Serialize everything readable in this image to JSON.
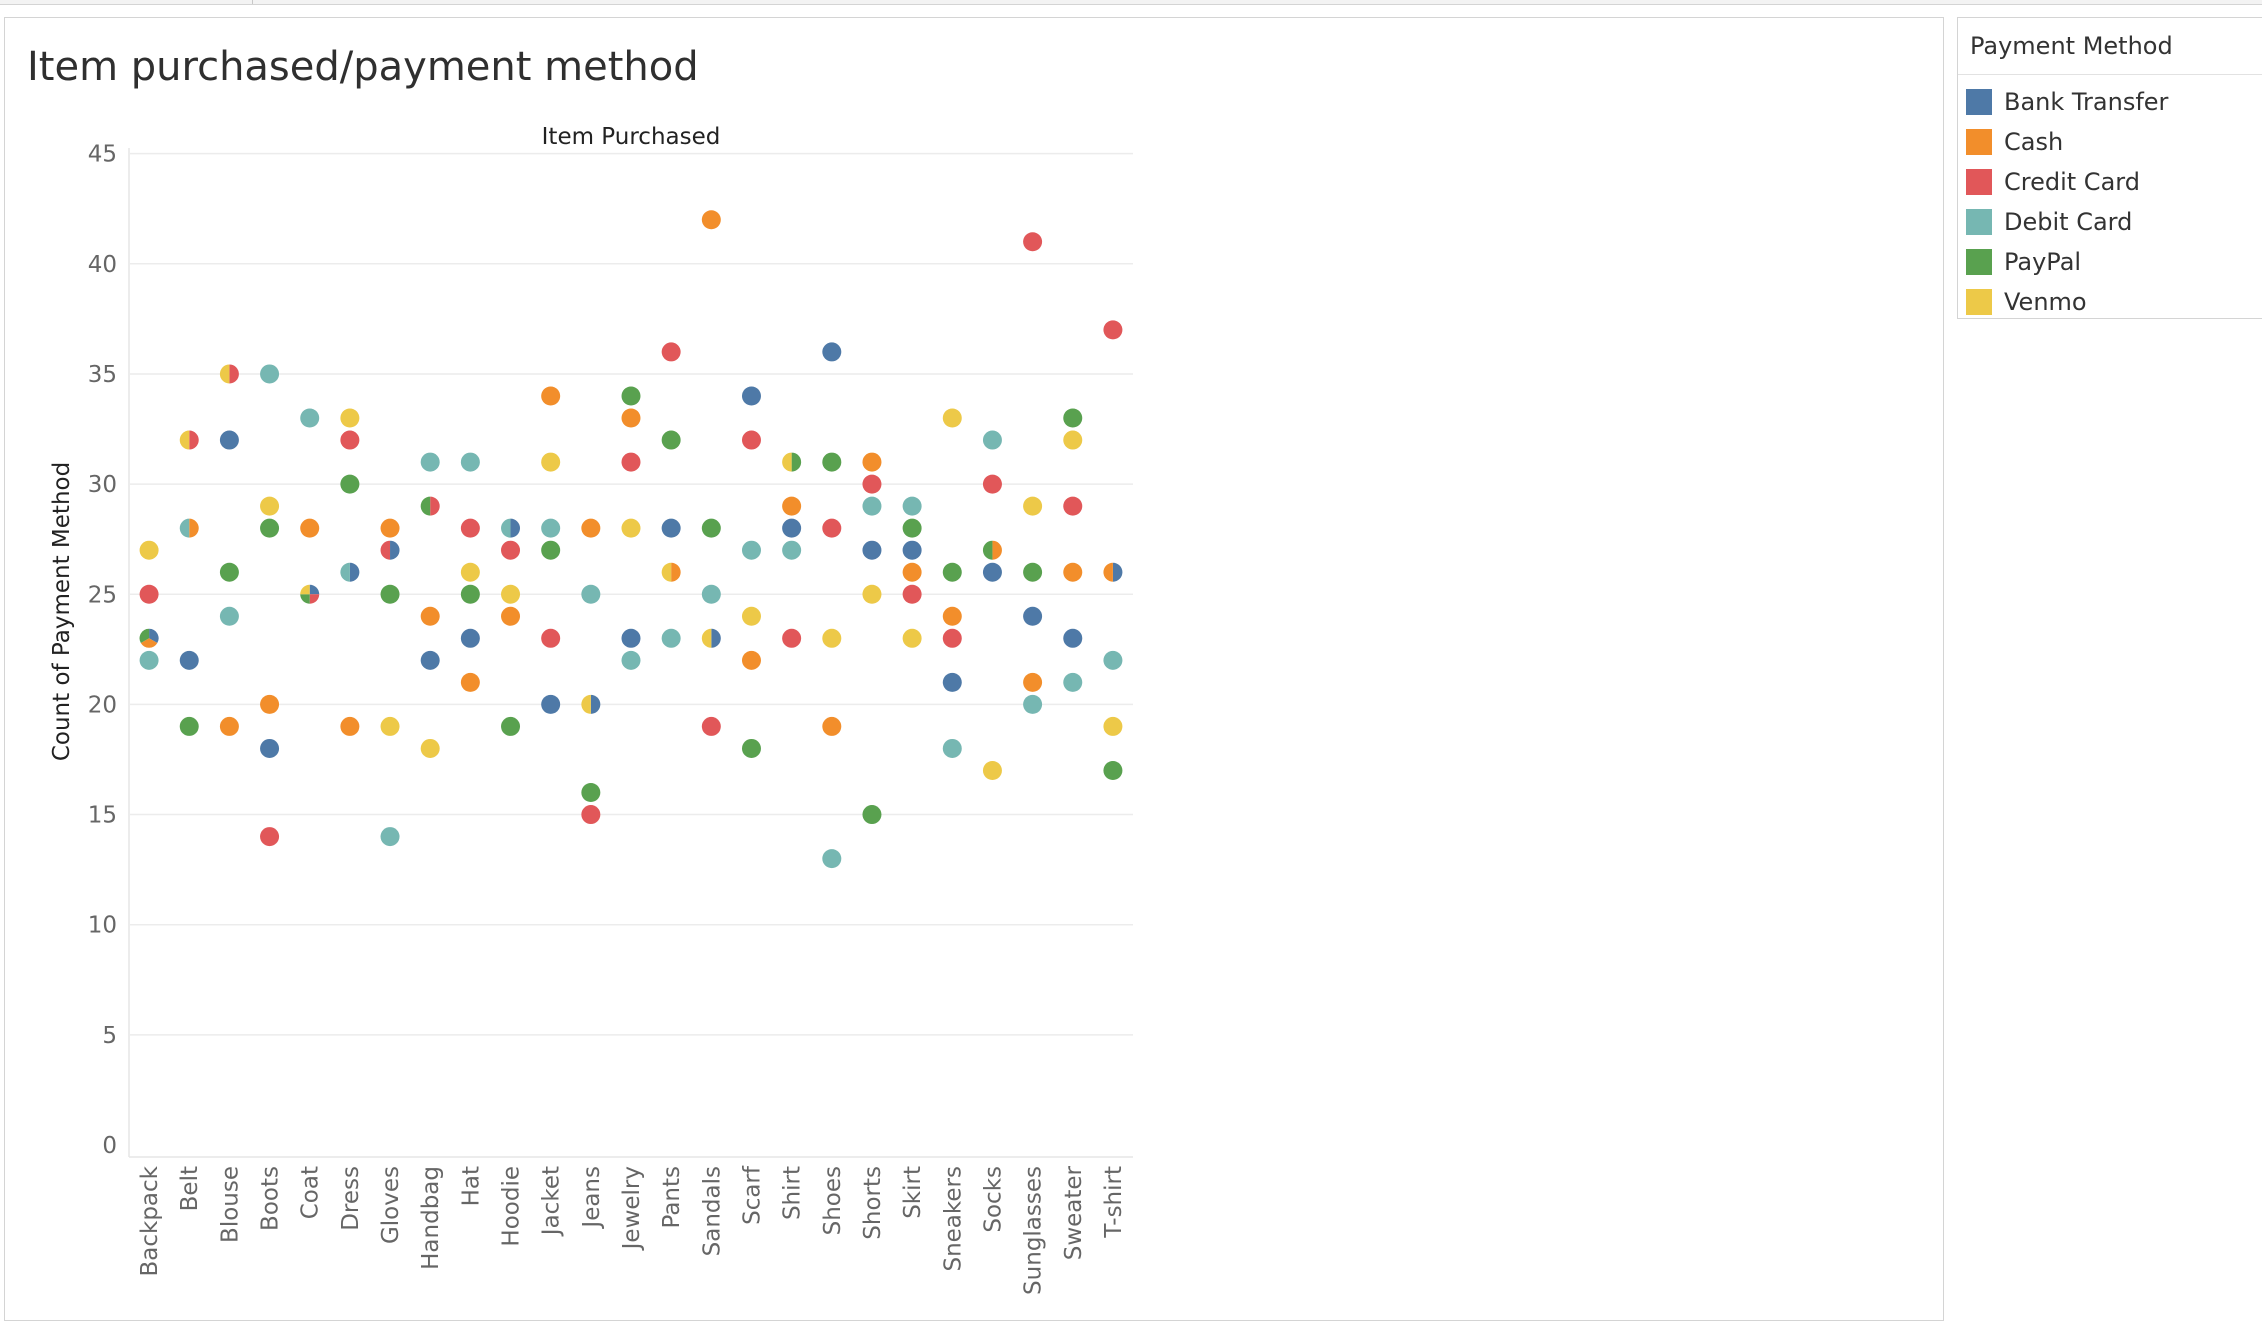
{
  "sheet": {
    "title": "Item purchased/payment method"
  },
  "legend": {
    "title": "Payment Method",
    "items": [
      {
        "label": "Bank Transfer",
        "color": "#4e79a7"
      },
      {
        "label": "Cash",
        "color": "#f28e2b"
      },
      {
        "label": "Credit Card",
        "color": "#e15759"
      },
      {
        "label": "Debit Card",
        "color": "#76b7b2"
      },
      {
        "label": "PayPal",
        "color": "#59a14f"
      },
      {
        "label": "Venmo",
        "color": "#edc948"
      }
    ]
  },
  "chart_data": {
    "type": "scatter",
    "title": "Item Purchased",
    "xlabel": "Item Purchased",
    "ylabel": "Count of Payment Method",
    "ylim": [
      0,
      45
    ],
    "yticks": [
      0,
      5,
      10,
      15,
      20,
      25,
      30,
      35,
      40,
      45
    ],
    "grid": true,
    "legend_position": "right",
    "categories": [
      "Backpack",
      "Belt",
      "Blouse",
      "Boots",
      "Coat",
      "Dress",
      "Gloves",
      "Handbag",
      "Hat",
      "Hoodie",
      "Jacket",
      "Jeans",
      "Jewelry",
      "Pants",
      "Sandals",
      "Scarf",
      "Shirt",
      "Shoes",
      "Shorts",
      "Skirt",
      "Sneakers",
      "Socks",
      "Sunglasses",
      "Sweater",
      "T-shirt"
    ],
    "series": [
      {
        "name": "Bank Transfer",
        "color": "#4e79a7",
        "values": [
          23,
          22,
          32,
          18,
          25,
          26,
          27,
          22,
          23,
          28,
          20,
          20,
          23,
          28,
          23,
          34,
          28,
          36,
          27,
          27,
          21,
          26,
          24,
          23,
          26
        ]
      },
      {
        "name": "Cash",
        "color": "#f28e2b",
        "values": [
          23,
          28,
          19,
          20,
          28,
          19,
          28,
          24,
          21,
          24,
          34,
          28,
          33,
          26,
          42,
          22,
          29,
          19,
          31,
          26,
          24,
          27,
          21,
          26,
          26
        ]
      },
      {
        "name": "Credit Card",
        "color": "#e15759",
        "values": [
          25,
          32,
          35,
          14,
          25,
          32,
          27,
          29,
          28,
          27,
          23,
          15,
          31,
          36,
          19,
          32,
          23,
          28,
          30,
          25,
          23,
          30,
          41,
          29,
          37
        ]
      },
      {
        "name": "Debit Card",
        "color": "#76b7b2",
        "values": [
          22,
          28,
          24,
          35,
          33,
          26,
          14,
          31,
          31,
          28,
          28,
          25,
          22,
          23,
          25,
          27,
          27,
          13,
          29,
          29,
          18,
          32,
          20,
          21,
          22
        ]
      },
      {
        "name": "PayPal",
        "color": "#59a14f",
        "values": [
          23,
          19,
          26,
          28,
          25,
          30,
          25,
          29,
          25,
          19,
          27,
          16,
          34,
          32,
          28,
          18,
          31,
          31,
          15,
          28,
          26,
          27,
          26,
          33,
          17
        ]
      },
      {
        "name": "Venmo",
        "color": "#edc948",
        "values": [
          27,
          32,
          35,
          29,
          25,
          33,
          19,
          18,
          26,
          25,
          31,
          20,
          28,
          26,
          23,
          24,
          31,
          23,
          25,
          23,
          33,
          17,
          29,
          32,
          19
        ]
      }
    ]
  }
}
